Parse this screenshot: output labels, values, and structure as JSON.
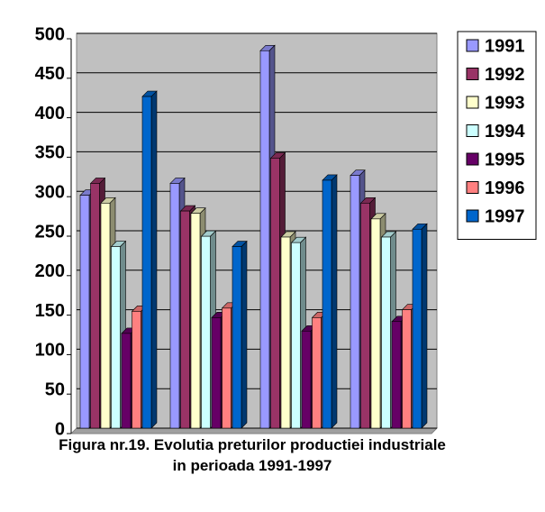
{
  "chart_data": {
    "type": "bar3d",
    "title": "Figura nr.19. Evolutia preturilor productiei industriale in perioada 1991-1997",
    "categories": [
      null,
      null,
      null,
      null
    ],
    "series": [
      {
        "name": "1991",
        "color": "#9999ff",
        "values": [
          295,
          310,
          478,
          320
        ]
      },
      {
        "name": "1992",
        "color": "#993366",
        "values": [
          310,
          275,
          342,
          285
        ]
      },
      {
        "name": "1993",
        "color": "#ffffcc",
        "values": [
          285,
          272,
          242,
          265
        ]
      },
      {
        "name": "1994",
        "color": "#ccffff",
        "values": [
          230,
          243,
          235,
          242
        ]
      },
      {
        "name": "1995",
        "color": "#660066",
        "values": [
          120,
          140,
          123,
          135
        ]
      },
      {
        "name": "1996",
        "color": "#ff8080",
        "values": [
          148,
          152,
          140,
          150
        ]
      },
      {
        "name": "1997",
        "color": "#0066cc",
        "values": [
          420,
          230,
          314,
          252
        ]
      }
    ],
    "ylim": [
      0,
      500
    ],
    "yticks": [
      0,
      50,
      100,
      150,
      200,
      250,
      300,
      350,
      400,
      450,
      500
    ],
    "grid": true,
    "legend": "right"
  }
}
